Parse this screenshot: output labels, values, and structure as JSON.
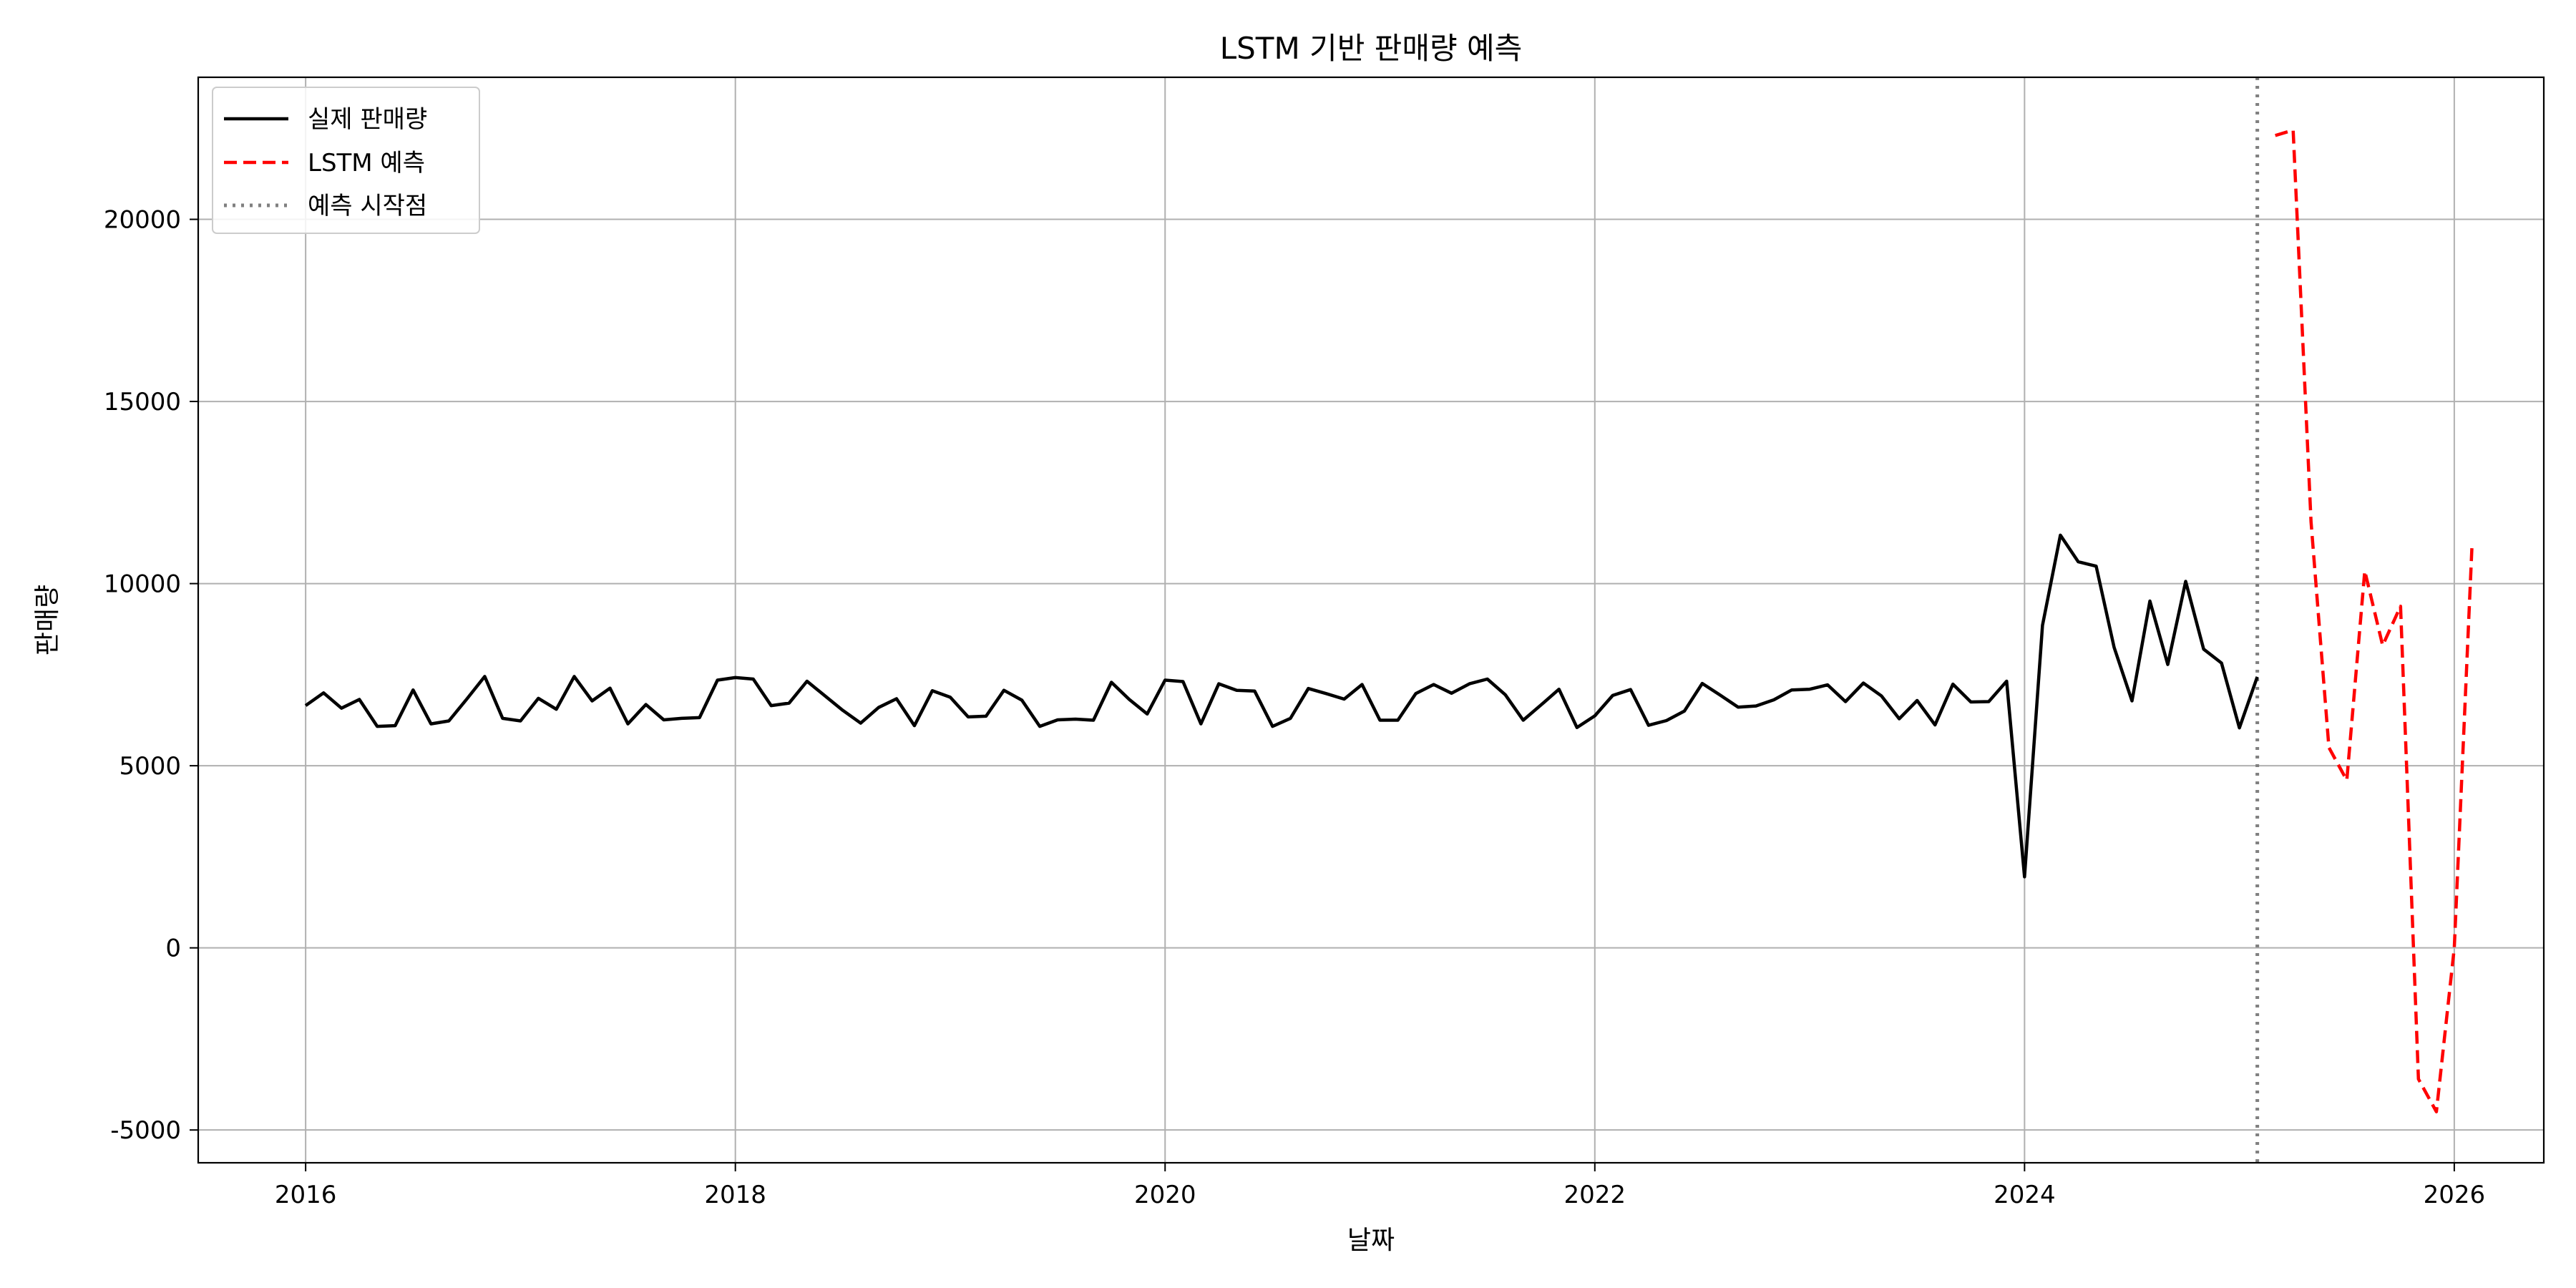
{
  "chart_data": {
    "type": "line",
    "title": "LSTM 기반 판매량 예측",
    "xlabel": "날짜",
    "ylabel": "판매량",
    "xlim": [
      "2015-07",
      "2026-06"
    ],
    "ylim": [
      -5900,
      23900
    ],
    "x_ticks": [
      "2016",
      "2018",
      "2020",
      "2022",
      "2024",
      "2026"
    ],
    "y_ticks": [
      -5000,
      0,
      5000,
      10000,
      15000,
      20000
    ],
    "y_tick_labels": [
      "-5000",
      "0",
      "5000",
      "10000",
      "15000",
      "20000"
    ],
    "grid": true,
    "legend_position": "top-left",
    "forecast_start": "2025-02",
    "series": [
      {
        "name": "실제 판매량",
        "color": "#000000",
        "style": "solid",
        "x": [
          "2016-01",
          "2016-02",
          "2016-03",
          "2016-04",
          "2016-05",
          "2016-06",
          "2016-07",
          "2016-08",
          "2016-09",
          "2016-10",
          "2016-11",
          "2016-12",
          "2017-01",
          "2017-02",
          "2017-03",
          "2017-04",
          "2017-05",
          "2017-06",
          "2017-07",
          "2017-08",
          "2017-09",
          "2017-10",
          "2017-11",
          "2017-12",
          "2018-01",
          "2018-02",
          "2018-03",
          "2018-04",
          "2018-05",
          "2018-06",
          "2018-07",
          "2018-08",
          "2018-09",
          "2018-10",
          "2018-11",
          "2018-12",
          "2019-01",
          "2019-02",
          "2019-03",
          "2019-04",
          "2019-05",
          "2019-06",
          "2019-07",
          "2019-08",
          "2019-09",
          "2019-10",
          "2019-11",
          "2019-12",
          "2020-01",
          "2020-02",
          "2020-03",
          "2020-04",
          "2020-05",
          "2020-06",
          "2020-07",
          "2020-08",
          "2020-09",
          "2020-10",
          "2020-11",
          "2020-12",
          "2021-01",
          "2021-02",
          "2021-03",
          "2021-04",
          "2021-05",
          "2021-06",
          "2021-07",
          "2021-08",
          "2021-09",
          "2021-10",
          "2021-11",
          "2021-12",
          "2022-01",
          "2022-02",
          "2022-03",
          "2022-04",
          "2022-05",
          "2022-06",
          "2022-07",
          "2022-08",
          "2022-09",
          "2022-10",
          "2022-11",
          "2022-12",
          "2023-01",
          "2023-02",
          "2023-03",
          "2023-04",
          "2023-05",
          "2023-06",
          "2023-07",
          "2023-08",
          "2023-09",
          "2023-10",
          "2023-11",
          "2023-12",
          "2024-01",
          "2024-02",
          "2024-03",
          "2024-04",
          "2024-05",
          "2024-06",
          "2024-07",
          "2024-08",
          "2024-09",
          "2024-10",
          "2024-11",
          "2024-12",
          "2025-01",
          "2025-02"
        ],
        "values": [
          6650,
          7000,
          6580,
          6820,
          6080,
          6100,
          7080,
          6150,
          6230,
          6830,
          7450,
          6300,
          6230,
          6850,
          6550,
          7450,
          6780,
          7130,
          6150,
          6680,
          6260,
          6300,
          6320,
          7350,
          7420,
          7380,
          6650,
          6720,
          7320,
          6920,
          6520,
          6170,
          6600,
          6840,
          6100,
          7060,
          6880,
          6340,
          6360,
          7070,
          6800,
          6080,
          6260,
          6280,
          6250,
          7290,
          6820,
          6420,
          7350,
          7310,
          6150,
          7250,
          7070,
          7050,
          6080,
          6300,
          7120,
          6980,
          6830,
          7230,
          6250,
          6250,
          6980,
          7230,
          6990,
          7250,
          7380,
          6950,
          6250,
          6670,
          7100,
          6050,
          6370,
          6930,
          7090,
          6110,
          6240,
          6500,
          7260,
          6940,
          6610,
          6640,
          6810,
          7080,
          7100,
          7220,
          6760,
          7270,
          6920,
          6290,
          6790,
          6120,
          7240,
          6750,
          6760,
          7320,
          1950,
          8850,
          11330,
          10600,
          10480,
          8250,
          6780,
          9520,
          7780,
          10060,
          8200,
          7820,
          6040,
          7440
        ]
      },
      {
        "name": "LSTM 예측",
        "color": "#ff0000",
        "style": "dashed",
        "x": [
          "2025-03",
          "2025-04",
          "2025-05",
          "2025-06",
          "2025-07",
          "2025-08",
          "2025-09",
          "2025-10",
          "2025-11",
          "2025-12",
          "2026-01",
          "2026-02"
        ],
        "values": [
          22300,
          22450,
          11700,
          5500,
          4600,
          10350,
          8300,
          9380,
          -3600,
          -4500,
          0,
          11150
        ]
      },
      {
        "name": "예측 시작점",
        "color": "#808080",
        "style": "dotted"
      }
    ]
  }
}
